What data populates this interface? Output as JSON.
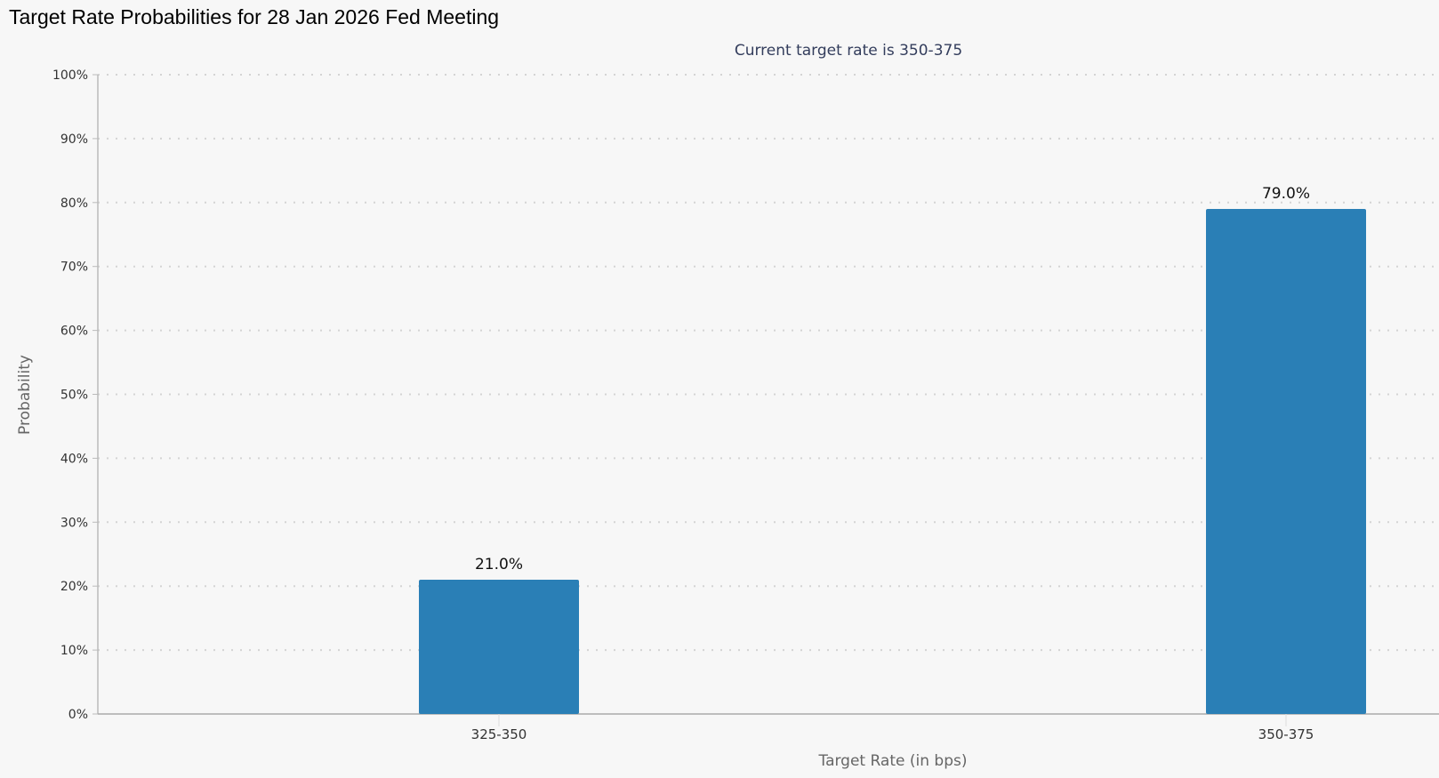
{
  "title": "Target Rate Probabilities for 28 Jan 2026 Fed Meeting",
  "chart_data": {
    "type": "bar",
    "title": "Target Rate Probabilities for 28 Jan 2026 Fed Meeting",
    "subtitle": "Current target rate is 350-375",
    "xlabel": "Target Rate (in bps)",
    "ylabel": "Probability",
    "categories": [
      "325-350",
      "350-375"
    ],
    "values": [
      21.0,
      79.0
    ],
    "data_labels": [
      "21.0%",
      "79.0%"
    ],
    "ylim": [
      0,
      100
    ],
    "yticks": [
      "0%",
      "10%",
      "20%",
      "30%",
      "40%",
      "50%",
      "60%",
      "70%",
      "80%",
      "90%",
      "100%"
    ],
    "grid": true,
    "legend": "none",
    "bar_color": "#2a7fb6"
  }
}
